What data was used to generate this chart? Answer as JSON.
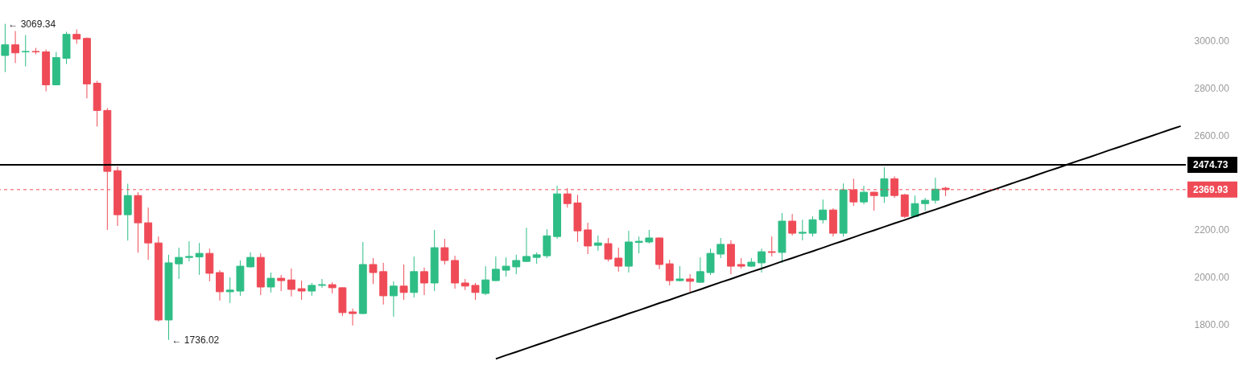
{
  "chart_data": {
    "type": "candlestick",
    "categories": [
      null,
      null,
      null,
      null,
      null,
      null,
      null,
      null,
      null,
      null,
      null,
      null,
      null,
      null,
      null,
      null,
      null,
      null,
      null,
      null,
      null,
      null,
      null,
      null,
      null,
      null,
      null,
      null,
      null,
      null,
      null,
      null,
      null,
      null,
      null,
      null,
      null,
      null,
      null,
      null,
      null,
      null,
      null,
      null,
      null,
      null,
      null,
      null,
      null,
      null,
      null,
      null,
      null,
      null,
      null,
      null,
      null,
      null,
      null,
      null,
      null,
      null,
      null,
      null,
      null,
      null,
      null,
      null,
      null,
      null,
      null,
      null,
      null,
      null,
      null,
      null,
      null,
      null,
      null,
      null,
      null,
      null,
      null,
      null,
      null,
      null,
      null,
      null,
      null,
      null,
      null,
      null,
      null,
      null,
      null,
      null,
      null,
      null,
      null,
      null,
      null,
      null,
      null,
      null,
      null,
      null,
      null,
      null,
      null,
      null,
      null,
      null,
      null,
      null,
      null,
      null
    ],
    "ohlc": [
      [
        2936,
        3069.34,
        2866,
        2981
      ],
      [
        2981,
        3039,
        2904,
        2947
      ],
      [
        2951,
        3022,
        2890,
        2953
      ],
      [
        2953,
        2968,
        2941,
        2951
      ],
      [
        2951,
        2961,
        2785,
        2812
      ],
      [
        2812,
        2951,
        2810,
        2927
      ],
      [
        2924,
        3036,
        2900,
        3025
      ],
      [
        3025,
        3046,
        2985,
        3005
      ],
      [
        3008,
        3012,
        2755,
        2816
      ],
      [
        2819,
        2829,
        2636,
        2704
      ],
      [
        2704,
        2714,
        2200,
        2447
      ],
      [
        2450,
        2467,
        2217,
        2264
      ],
      [
        2264,
        2395,
        2155,
        2345
      ],
      [
        2345,
        2359,
        2104,
        2230
      ],
      [
        2230,
        2294,
        2074,
        2145
      ],
      [
        2145,
        2172,
        1813,
        1820
      ],
      [
        1820,
        2095,
        1736.02,
        2061
      ],
      [
        2057,
        2125,
        1993,
        2084
      ],
      [
        2084,
        2152,
        2067,
        2088
      ],
      [
        2086,
        2145,
        2010,
        2101
      ],
      [
        2101,
        2121,
        1983,
        2017
      ],
      [
        2020,
        2030,
        1902,
        1939
      ],
      [
        1939,
        2000,
        1892,
        1946
      ],
      [
        1942,
        2071,
        1922,
        2047
      ],
      [
        2044,
        2105,
        2041,
        2084
      ],
      [
        2084,
        2101,
        1925,
        1959
      ],
      [
        1959,
        2020,
        1936,
        1996
      ],
      [
        1996,
        2010,
        1942,
        1986
      ],
      [
        1989,
        2037,
        1919,
        1949
      ],
      [
        1952,
        1986,
        1905,
        1942
      ],
      [
        1942,
        1976,
        1922,
        1966
      ],
      [
        1966,
        1993,
        1956,
        1969
      ],
      [
        1969,
        1979,
        1932,
        1956
      ],
      [
        1956,
        1958,
        1837,
        1851
      ],
      [
        1854,
        1868,
        1797,
        1847
      ],
      [
        1847,
        2149,
        1845,
        2054
      ],
      [
        2054,
        2081,
        1972,
        2020
      ],
      [
        2024,
        2061,
        1885,
        1922
      ],
      [
        1922,
        1983,
        1834,
        1963
      ],
      [
        1963,
        2054,
        1905,
        1936
      ],
      [
        1936,
        2088,
        1915,
        2024
      ],
      [
        2024,
        2041,
        1925,
        1976
      ],
      [
        1976,
        2200,
        1942,
        2125
      ],
      [
        2125,
        2162,
        2054,
        2071
      ],
      [
        2071,
        2091,
        1952,
        1976
      ],
      [
        1976,
        1993,
        1946,
        1963
      ],
      [
        1966,
        1976,
        1905,
        1936
      ],
      [
        1932,
        2047,
        1925,
        1989
      ],
      [
        1986,
        2088,
        1984,
        2034
      ],
      [
        2030,
        2084,
        2003,
        2047
      ],
      [
        2044,
        2095,
        2013,
        2071
      ],
      [
        2067,
        2209,
        2065,
        2088
      ],
      [
        2084,
        2105,
        2057,
        2095
      ],
      [
        2091,
        2203,
        2081,
        2175
      ],
      [
        2172,
        2386,
        2162,
        2352
      ],
      [
        2352,
        2376,
        2294,
        2311
      ],
      [
        2314,
        2348,
        2149,
        2196
      ],
      [
        2200,
        2230,
        2098,
        2132
      ],
      [
        2135,
        2176,
        2112,
        2145
      ],
      [
        2142,
        2166,
        2067,
        2077
      ],
      [
        2081,
        2125,
        2024,
        2047
      ],
      [
        2047,
        2196,
        2020,
        2149
      ],
      [
        2147,
        2172,
        2101,
        2152
      ],
      [
        2149,
        2200,
        2142,
        2166
      ],
      [
        2166,
        2168,
        2034,
        2054
      ],
      [
        2057,
        2074,
        1966,
        1986
      ],
      [
        1986,
        2047,
        1983,
        1993
      ],
      [
        1993,
        2013,
        1939,
        1983
      ],
      [
        1979,
        2084,
        1977,
        2024
      ],
      [
        2020,
        2121,
        2010,
        2101
      ],
      [
        2098,
        2166,
        2081,
        2139
      ],
      [
        2139,
        2156,
        2013,
        2047
      ],
      [
        2054,
        2081,
        2037,
        2047
      ],
      [
        2047,
        2081,
        2044,
        2064
      ],
      [
        2061,
        2121,
        2020,
        2108
      ],
      [
        2108,
        2172,
        2088,
        2105
      ],
      [
        2105,
        2271,
        2061,
        2237
      ],
      [
        2237,
        2267,
        2176,
        2186
      ],
      [
        2186,
        2243,
        2156,
        2190
      ],
      [
        2186,
        2257,
        2172,
        2243
      ],
      [
        2243,
        2328,
        2227,
        2284
      ],
      [
        2284,
        2291,
        2172,
        2186
      ],
      [
        2186,
        2396,
        2172,
        2369
      ],
      [
        2369,
        2416,
        2301,
        2318
      ],
      [
        2318,
        2386,
        2308,
        2359
      ],
      [
        2359,
        2362,
        2281,
        2345
      ],
      [
        2342,
        2464,
        2314,
        2416
      ],
      [
        2416,
        2426,
        2335,
        2345
      ],
      [
        2348,
        2352,
        2250,
        2257
      ],
      [
        2257,
        2345,
        2255,
        2311
      ],
      [
        2311,
        2335,
        2281,
        2325
      ],
      [
        2325,
        2420,
        2311,
        2372
      ],
      [
        2376,
        2382,
        2342,
        2369.93
      ],
      null,
      null,
      null,
      null,
      null,
      null,
      null,
      null,
      null,
      null,
      null,
      null,
      null,
      null,
      null,
      null,
      null,
      null,
      null,
      null,
      null,
      null,
      null
    ],
    "colors": [
      "#2ebd85",
      "#ef4b57",
      "#2ebd85",
      "#ef4b57",
      "#ef4b57",
      "#2ebd85",
      "#2ebd85",
      "#ef4b57",
      "#ef4b57",
      "#ef4b57",
      "#ef4b57",
      "#ef4b57",
      "#2ebd85",
      "#ef4b57",
      "#ef4b57",
      "#ef4b57",
      "#2ebd85",
      "#2ebd85",
      "#2ebd85",
      "#2ebd85",
      "#ef4b57",
      "#ef4b57",
      "#2ebd85",
      "#2ebd85",
      "#2ebd85",
      "#ef4b57",
      "#2ebd85",
      "#ef4b57",
      "#ef4b57",
      "#ef4b57",
      "#2ebd85",
      "#2ebd85",
      "#ef4b57",
      "#ef4b57",
      "#ef4b57",
      "#2ebd85",
      "#ef4b57",
      "#ef4b57",
      "#2ebd85",
      "#ef4b57",
      "#2ebd85",
      "#ef4b57",
      "#2ebd85",
      "#ef4b57",
      "#ef4b57",
      "#ef4b57",
      "#ef4b57",
      "#2ebd85",
      "#2ebd85",
      "#2ebd85",
      "#2ebd85",
      "#2ebd85",
      "#2ebd85",
      "#2ebd85",
      "#2ebd85",
      "#ef4b57",
      "#ef4b57",
      "#ef4b57",
      "#2ebd85",
      "#ef4b57",
      "#ef4b57",
      "#2ebd85",
      "#2ebd85",
      "#2ebd85",
      "#ef4b57",
      "#ef4b57",
      "#2ebd85",
      "#ef4b57",
      "#2ebd85",
      "#2ebd85",
      "#2ebd85",
      "#ef4b57",
      "#ef4b57",
      "#2ebd85",
      "#2ebd85",
      "#ef4b57",
      "#2ebd85",
      "#ef4b57",
      "#2ebd85",
      "#2ebd85",
      "#2ebd85",
      "#ef4b57",
      "#2ebd85",
      "#ef4b57",
      "#2ebd85",
      "#ef4b57",
      "#2ebd85",
      "#ef4b57",
      "#ef4b57",
      "#2ebd85",
      "#2ebd85",
      "#2ebd85",
      "#ef4b57",
      null,
      null,
      null,
      null,
      null,
      null,
      null,
      null,
      null,
      null,
      null,
      null,
      null,
      null,
      null,
      null,
      null,
      null,
      null,
      null,
      null,
      null,
      null
    ],
    "series": [
      {
        "type": "line",
        "color": "#000000",
        "values": [
          null,
          null,
          null,
          null,
          null,
          null,
          null,
          null,
          null,
          null,
          null,
          null,
          null,
          null,
          null,
          null,
          null,
          null,
          null,
          null,
          null,
          null,
          null,
          null,
          null,
          null,
          null,
          null,
          null,
          null,
          null,
          null,
          null,
          null,
          null,
          null,
          null,
          null,
          null,
          null,
          null,
          null,
          null,
          null,
          null,
          null,
          null,
          null,
          1656,
          1671,
          1685,
          1700,
          1715,
          1729,
          1744,
          1759,
          1773,
          1788,
          1803,
          1817,
          1832,
          1847,
          1861,
          1876,
          1891,
          1905,
          1920,
          1935,
          1949,
          1964,
          1979,
          1993,
          2008,
          2023,
          2037,
          2052,
          2067,
          2081,
          2096,
          2110,
          2125,
          2140,
          2154,
          2169,
          2184,
          2198,
          2213,
          2228,
          2242,
          2257,
          2272,
          2286,
          2301,
          2316,
          2330,
          2345,
          2360,
          2374,
          2389,
          2404,
          2418,
          2433,
          2448,
          2462,
          2477,
          2492,
          2506,
          2521,
          2536,
          2550,
          2565,
          2580,
          2594,
          2609,
          2624,
          2638
        ]
      }
    ],
    "ylim": [
      1630,
      3170
    ],
    "yticks": [
      {
        "value": 1800,
        "label": "1800.00"
      },
      {
        "value": 2000,
        "label": "2000.00"
      },
      {
        "value": 2200,
        "label": "2200.00"
      },
      {
        "value": 2600,
        "label": "2600.00"
      },
      {
        "value": 2800,
        "label": "2800.00"
      },
      {
        "value": 3000,
        "label": "3000.00"
      }
    ],
    "ref_lines": [
      {
        "axis": "y",
        "value": 2474.73,
        "label": "2474.73",
        "color": "#000000",
        "line_style": "solid"
      },
      {
        "axis": "y",
        "value": 2369.93,
        "label": "2369.93",
        "color": "#ef4b57",
        "line_style": "dashed"
      }
    ],
    "annotations": [
      "← 3069.34",
      "← 1736.02"
    ],
    "tick_labels": "y"
  }
}
